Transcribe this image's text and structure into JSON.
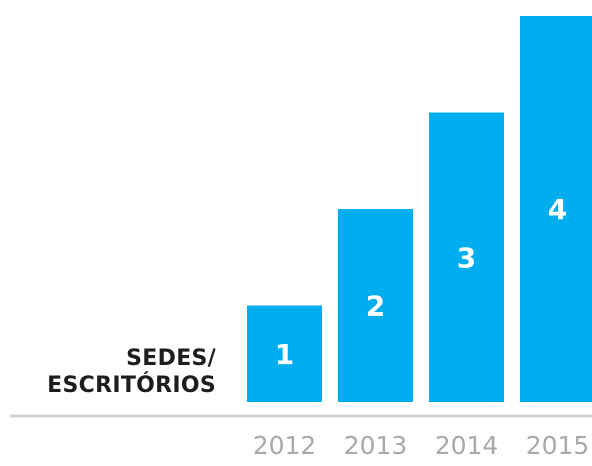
{
  "chart_data": {
    "type": "bar",
    "categories": [
      "2012",
      "2013",
      "2014",
      "2015"
    ],
    "values": [
      1,
      2,
      3,
      4
    ],
    "data_labels": [
      "1",
      "2",
      "3",
      "4"
    ],
    "ylabel_lines": [
      "SEDES/",
      "ESCRITÓRIOS"
    ],
    "title": "",
    "xlabel": "",
    "ylim": [
      0,
      4
    ],
    "grid": false,
    "legend": "none",
    "colors": {
      "bar": "#00aeef",
      "bar_label": "#ffffff",
      "axis": "#d3d3d3",
      "tick_label": "#a7a9ac",
      "ylabel": "#1d1d1b"
    }
  }
}
